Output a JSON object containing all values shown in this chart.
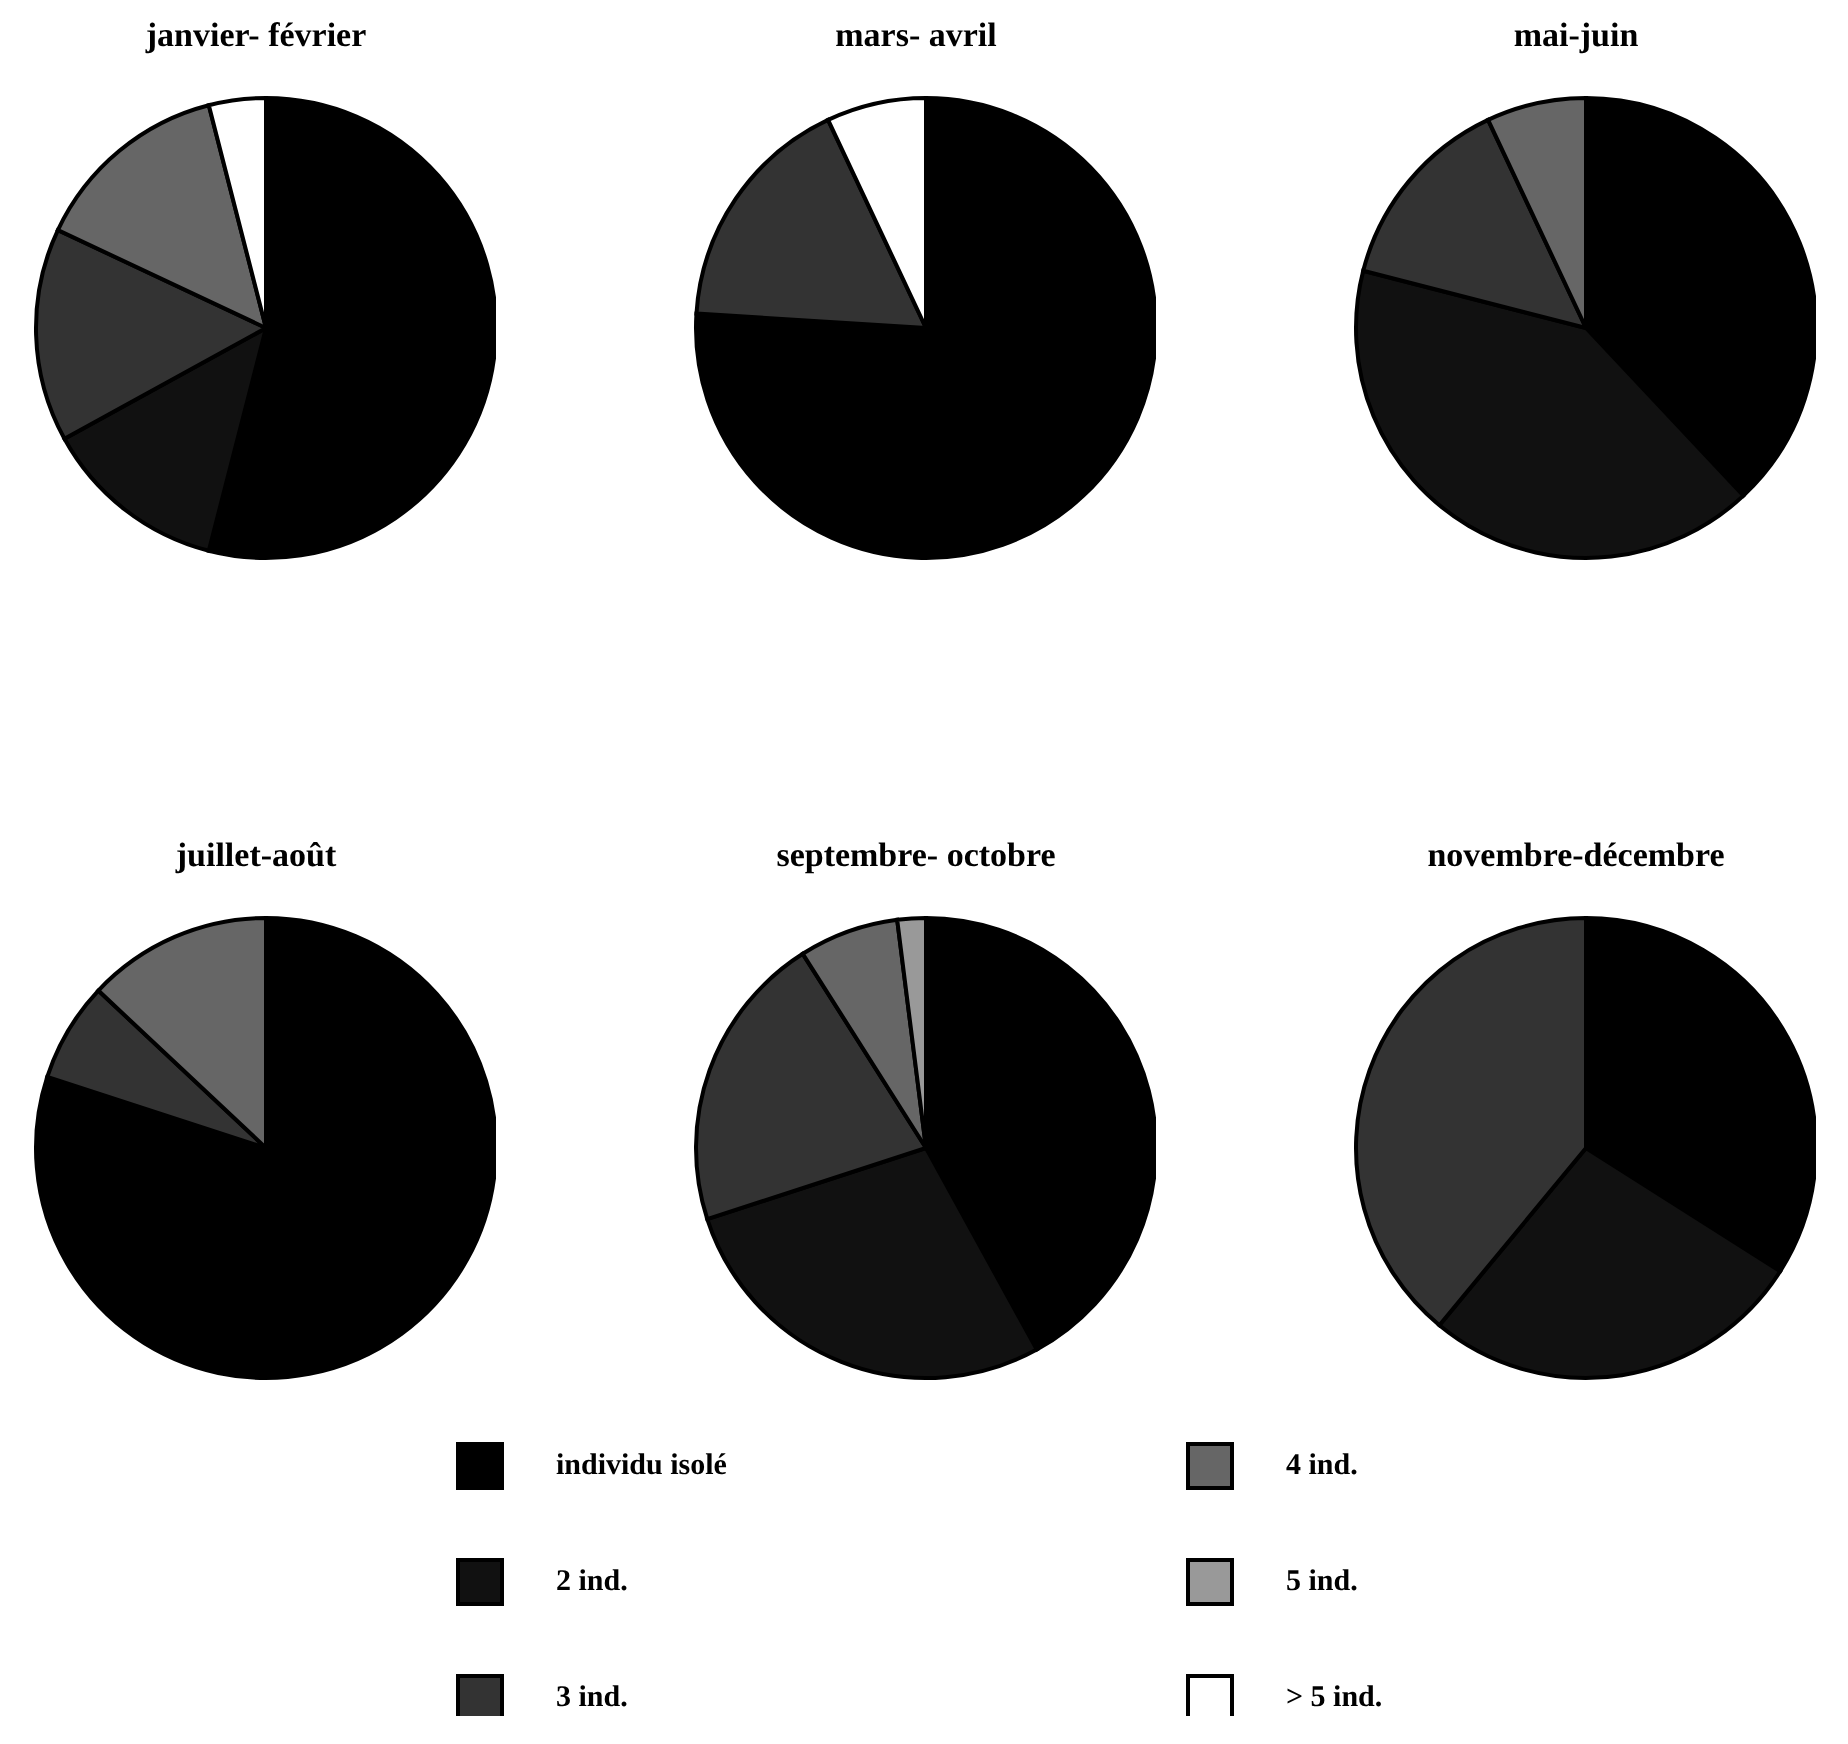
{
  "chart_data": [
    {
      "type": "pie",
      "title": "janvier- février",
      "categories": [
        "individu isolé",
        "2 ind.",
        "3 ind.",
        "4 ind.",
        "5 ind.",
        "> 5 ind."
      ],
      "values": [
        54,
        13,
        15,
        14,
        0,
        4
      ],
      "colors": [
        "#000000",
        "#111111",
        "#333333",
        "#666666",
        "#999999",
        "#ffffff"
      ],
      "legend": "bottom"
    },
    {
      "type": "pie",
      "title": "mars- avril",
      "categories": [
        null,
        null,
        null,
        null,
        null,
        null
      ],
      "values": [
        76,
        0,
        17,
        0,
        0,
        7
      ],
      "colors": [
        "#000000",
        "#111111",
        "#333333",
        "#666666",
        "#999999",
        "#ffffff"
      ]
    },
    {
      "type": "pie",
      "title": "mai-juin",
      "categories": [
        null,
        null,
        null,
        null,
        null,
        null
      ],
      "values": [
        38,
        41,
        14,
        7,
        0,
        0
      ],
      "colors": [
        "#000000",
        "#111111",
        "#333333",
        "#666666",
        "#999999",
        "#ffffff"
      ]
    },
    {
      "type": "pie",
      "title": "juillet-août",
      "categories": [
        null,
        null,
        null,
        null,
        null,
        null
      ],
      "values": [
        80,
        0,
        7,
        13,
        0,
        0
      ],
      "colors": [
        "#000000",
        "#111111",
        "#333333",
        "#666666",
        "#999999",
        "#ffffff"
      ]
    },
    {
      "type": "pie",
      "title": "septembre- octobre",
      "categories": [
        null,
        null,
        null,
        null,
        null,
        null
      ],
      "values": [
        42,
        28,
        21,
        7,
        2,
        0
      ],
      "colors": [
        "#000000",
        "#111111",
        "#333333",
        "#666666",
        "#999999",
        "#ffffff"
      ]
    },
    {
      "type": "pie",
      "title": "novembre-décembre",
      "categories": [
        null,
        null,
        null,
        null,
        null,
        null
      ],
      "values": [
        34,
        27,
        39,
        0,
        0,
        0
      ],
      "colors": [
        "#000000",
        "#111111",
        "#333333",
        "#666666",
        "#999999",
        "#ffffff"
      ]
    }
  ]
}
